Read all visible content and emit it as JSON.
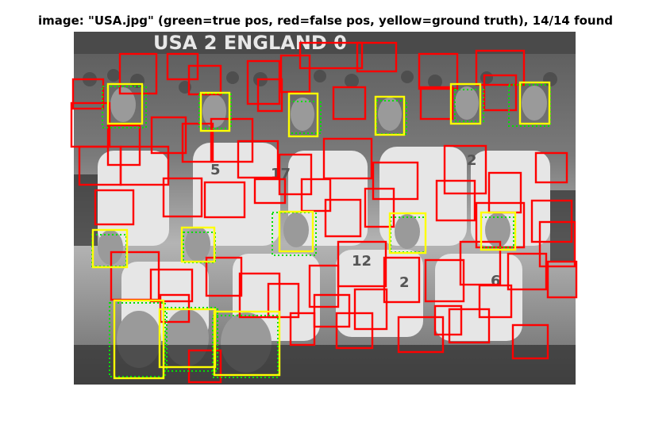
{
  "figure": {
    "title": "image: \"USA.jpg\" (green=true pos, red=false pos, yellow=ground truth), 14/14 found"
  },
  "photo": {
    "banner_text": "USA 2 ENGLAND 0",
    "jersey_numbers": [
      "5",
      "17",
      "2",
      "12",
      "2",
      "6"
    ]
  },
  "legend_colors": {
    "true_positive": "#00e000",
    "false_positive": "#ff0000",
    "ground_truth": "#ffff00"
  },
  "counts": {
    "found": 14,
    "total": 14
  }
}
